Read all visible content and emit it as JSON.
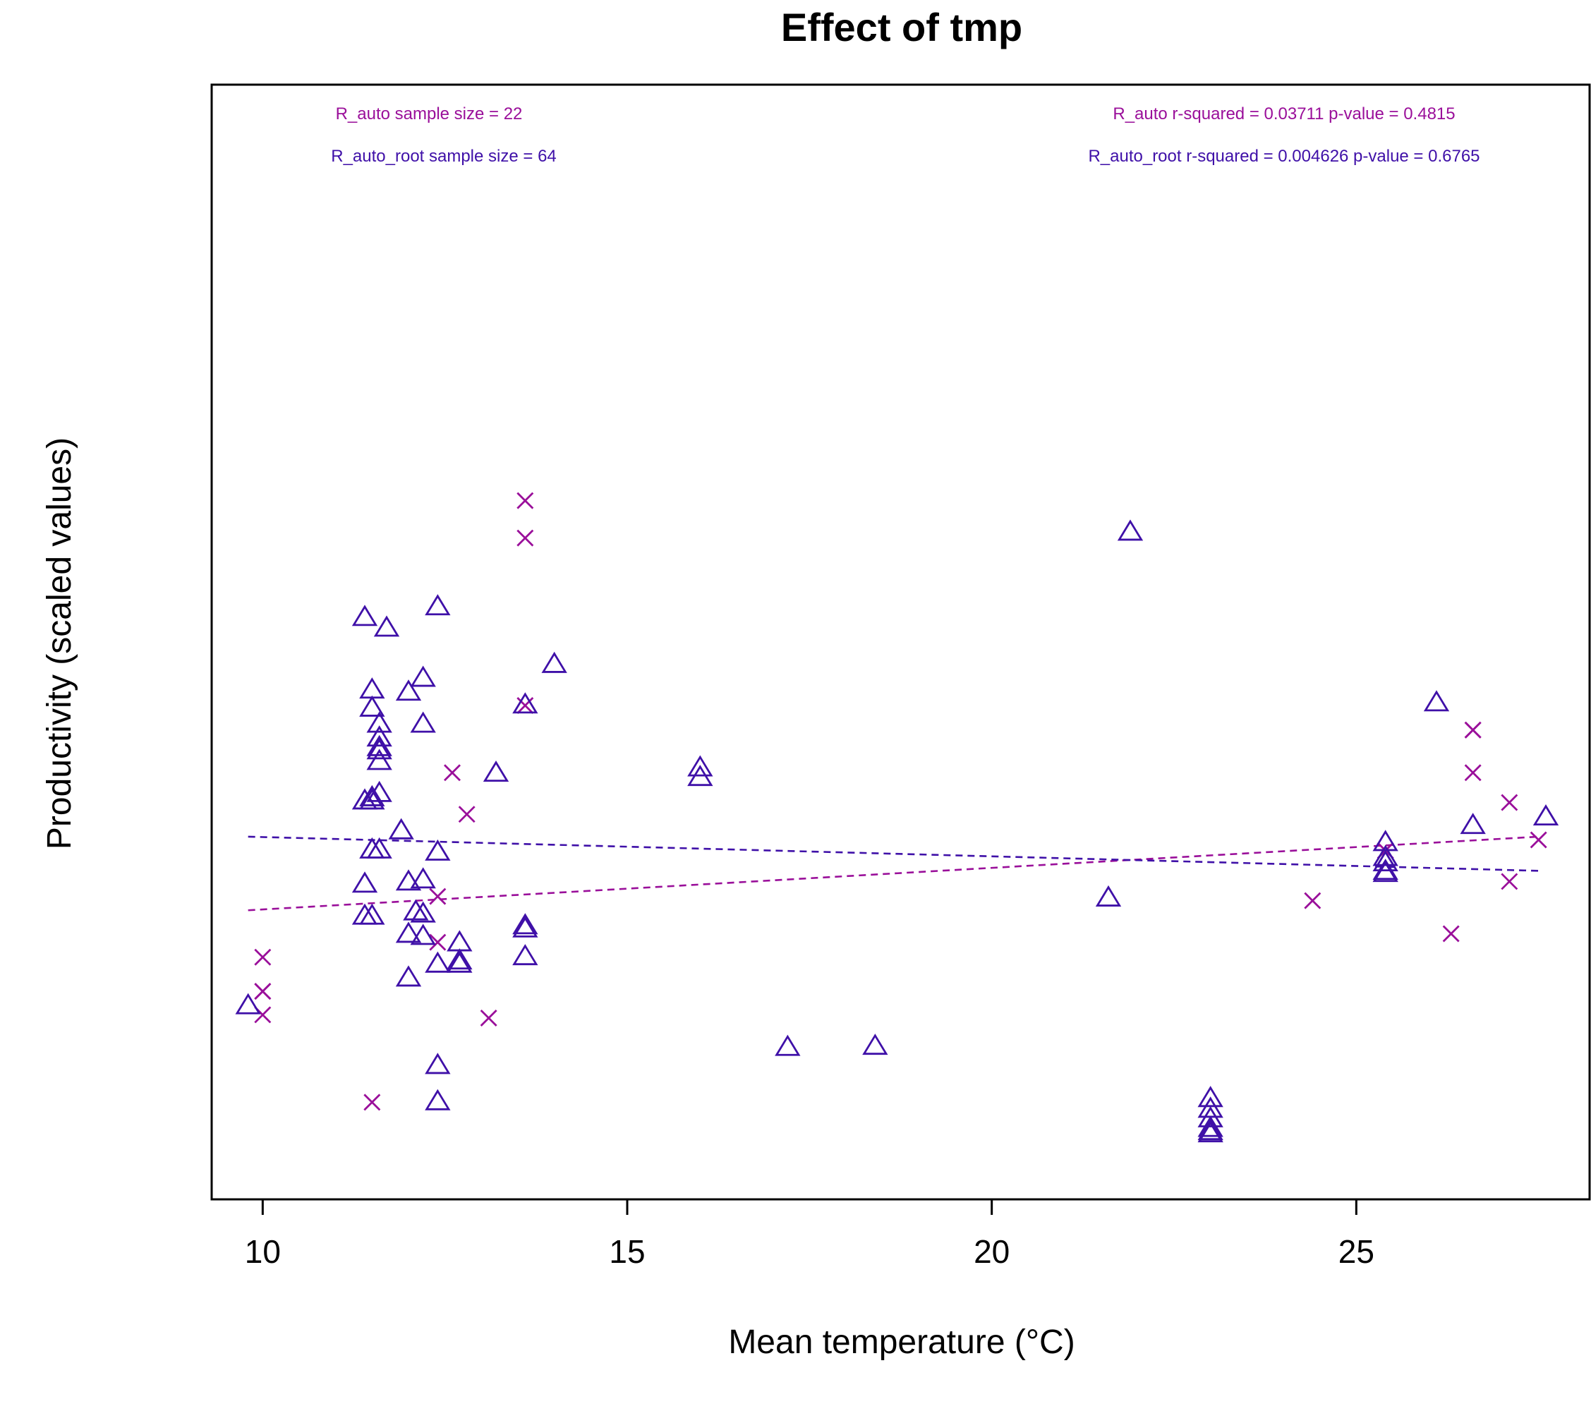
{
  "chart_data": {
    "type": "scatter",
    "title": "Effect of tmp",
    "xlabel": "Mean temperature (°C)",
    "ylabel": "Productivity (scaled values)",
    "xlim": [
      9.3,
      28.2
    ],
    "ylim": [
      -0.045,
      1.0
    ],
    "xticks": [
      "10",
      "15",
      "20",
      "25"
    ],
    "xtick_values": [
      10,
      15,
      20,
      25
    ],
    "yticks_shown": false,
    "grid": false,
    "annotations": {
      "r_auto_n": "R_auto sample size = 22",
      "r_auto_root_n": "R_auto_root sample size = 64",
      "r_auto_stats": "R_auto r-squared =  0.03711 p-value =  0.4815",
      "r_auto_root_stats": "R_auto_root r-squared =  0.004626 p-value =  0.6765"
    },
    "series": [
      {
        "name": "R_auto",
        "marker": "cross",
        "color": "#9a0f9a",
        "x": [
          10.0,
          10.0,
          10.0,
          11.5,
          12.4,
          12.4,
          12.6,
          12.8,
          13.1,
          13.6,
          13.6,
          13.6,
          24.4,
          25.4,
          26.3,
          26.6,
          26.6,
          27.1,
          27.1,
          27.5,
          26.6,
          10.0
        ],
        "y": [
          0.182,
          0.15,
          0.128,
          0.046,
          0.239,
          0.196,
          0.355,
          0.316,
          0.125,
          0.61,
          0.575,
          0.418,
          0.235,
          0.282,
          0.204,
          0.395,
          0.355,
          0.327,
          0.253,
          0.292,
          0.395,
          0.15
        ],
        "fit": {
          "x": [
            9.8,
            27.5
          ],
          "y": [
            0.226,
            0.295
          ]
        }
      },
      {
        "name": "R_auto_root",
        "marker": "triangle",
        "color": "#3f10a8",
        "x": [
          9.8,
          11.4,
          11.4,
          11.4,
          11.4,
          11.5,
          11.5,
          11.5,
          11.5,
          11.5,
          11.5,
          11.6,
          11.6,
          11.6,
          11.6,
          11.6,
          11.6,
          11.6,
          11.7,
          11.9,
          12.0,
          12.0,
          12.0,
          12.0,
          12.1,
          12.2,
          12.2,
          12.2,
          12.2,
          12.2,
          12.4,
          12.4,
          12.4,
          12.4,
          12.4,
          12.7,
          12.7,
          12.7,
          13.2,
          13.6,
          13.6,
          13.6,
          13.6,
          14.0,
          16.0,
          16.0,
          17.2,
          18.4,
          21.6,
          21.9,
          23.0,
          23.0,
          23.0,
          23.0,
          23.0,
          23.0,
          25.4,
          25.4,
          25.4,
          25.4,
          26.1,
          26.6,
          27.6,
          25.4
        ],
        "y": [
          0.136,
          0.5,
          0.328,
          0.25,
          0.22,
          0.331,
          0.328,
          0.282,
          0.22,
          0.432,
          0.415,
          0.4,
          0.387,
          0.378,
          0.375,
          0.365,
          0.335,
          0.282,
          0.49,
          0.3,
          0.43,
          0.252,
          0.203,
          0.162,
          0.224,
          0.4,
          0.443,
          0.222,
          0.254,
          0.201,
          0.51,
          0.28,
          0.08,
          0.046,
          0.175,
          0.195,
          0.175,
          0.178,
          0.354,
          0.208,
          0.211,
          0.418,
          0.182,
          0.456,
          0.359,
          0.35,
          0.097,
          0.098,
          0.237,
          0.58,
          0.049,
          0.039,
          0.03,
          0.021,
          0.018,
          0.016,
          0.289,
          0.27,
          0.262,
          0.26,
          0.42,
          0.305,
          0.313,
          0.275
        ],
        "fit": {
          "x": [
            9.8,
            27.5
          ],
          "y": [
            0.295,
            0.263
          ]
        }
      }
    ]
  }
}
